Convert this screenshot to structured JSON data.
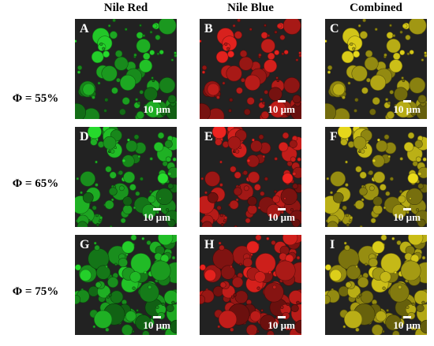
{
  "columns": [
    "Nile Red",
    "Nile Blue",
    "Combined"
  ],
  "rows": [
    {
      "label": "Φ = 55%",
      "panels": [
        "A",
        "B",
        "C"
      ]
    },
    {
      "label": "Φ = 65%",
      "panels": [
        "D",
        "E",
        "F"
      ]
    },
    {
      "label": "Φ = 75%",
      "panels": [
        "G",
        "H",
        "I"
      ]
    }
  ],
  "scale_bar_label": "10 µm",
  "channel_colors": {
    "nile_red": "#25d42b",
    "nile_blue": "#e8231f",
    "combined": "#e0d21a"
  },
  "background_color": "#222222"
}
